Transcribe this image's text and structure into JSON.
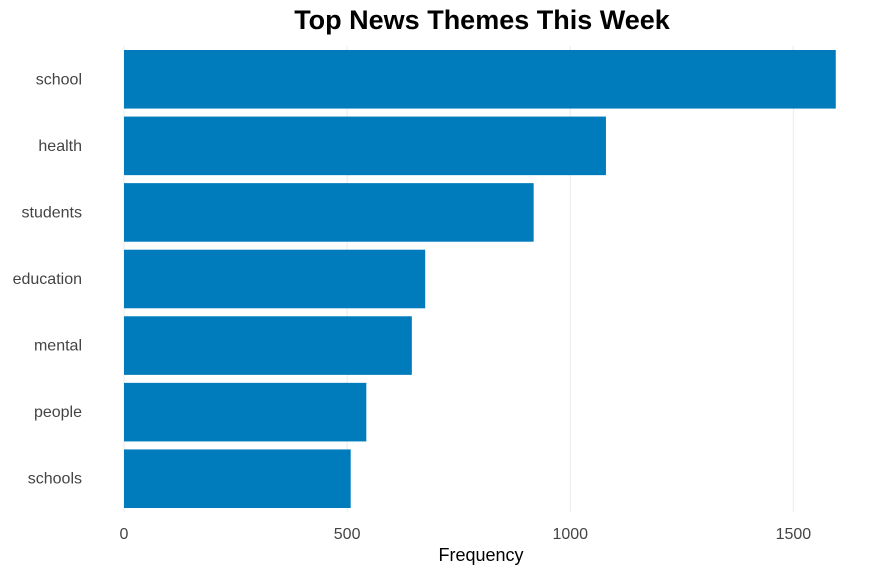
{
  "chart_data": {
    "type": "bar",
    "orientation": "horizontal",
    "title": "Top News Themes This Week",
    "xlabel": "Frequency",
    "ylabel": "",
    "categories": [
      "school",
      "health",
      "students",
      "education",
      "mental",
      "people",
      "schools"
    ],
    "values": [
      1595,
      1080,
      918,
      675,
      645,
      543,
      508
    ],
    "xlim": [
      0,
      1600
    ],
    "xticks": [
      0,
      500,
      1000,
      1500
    ],
    "grid": true,
    "bar_color": "#007bbb"
  }
}
